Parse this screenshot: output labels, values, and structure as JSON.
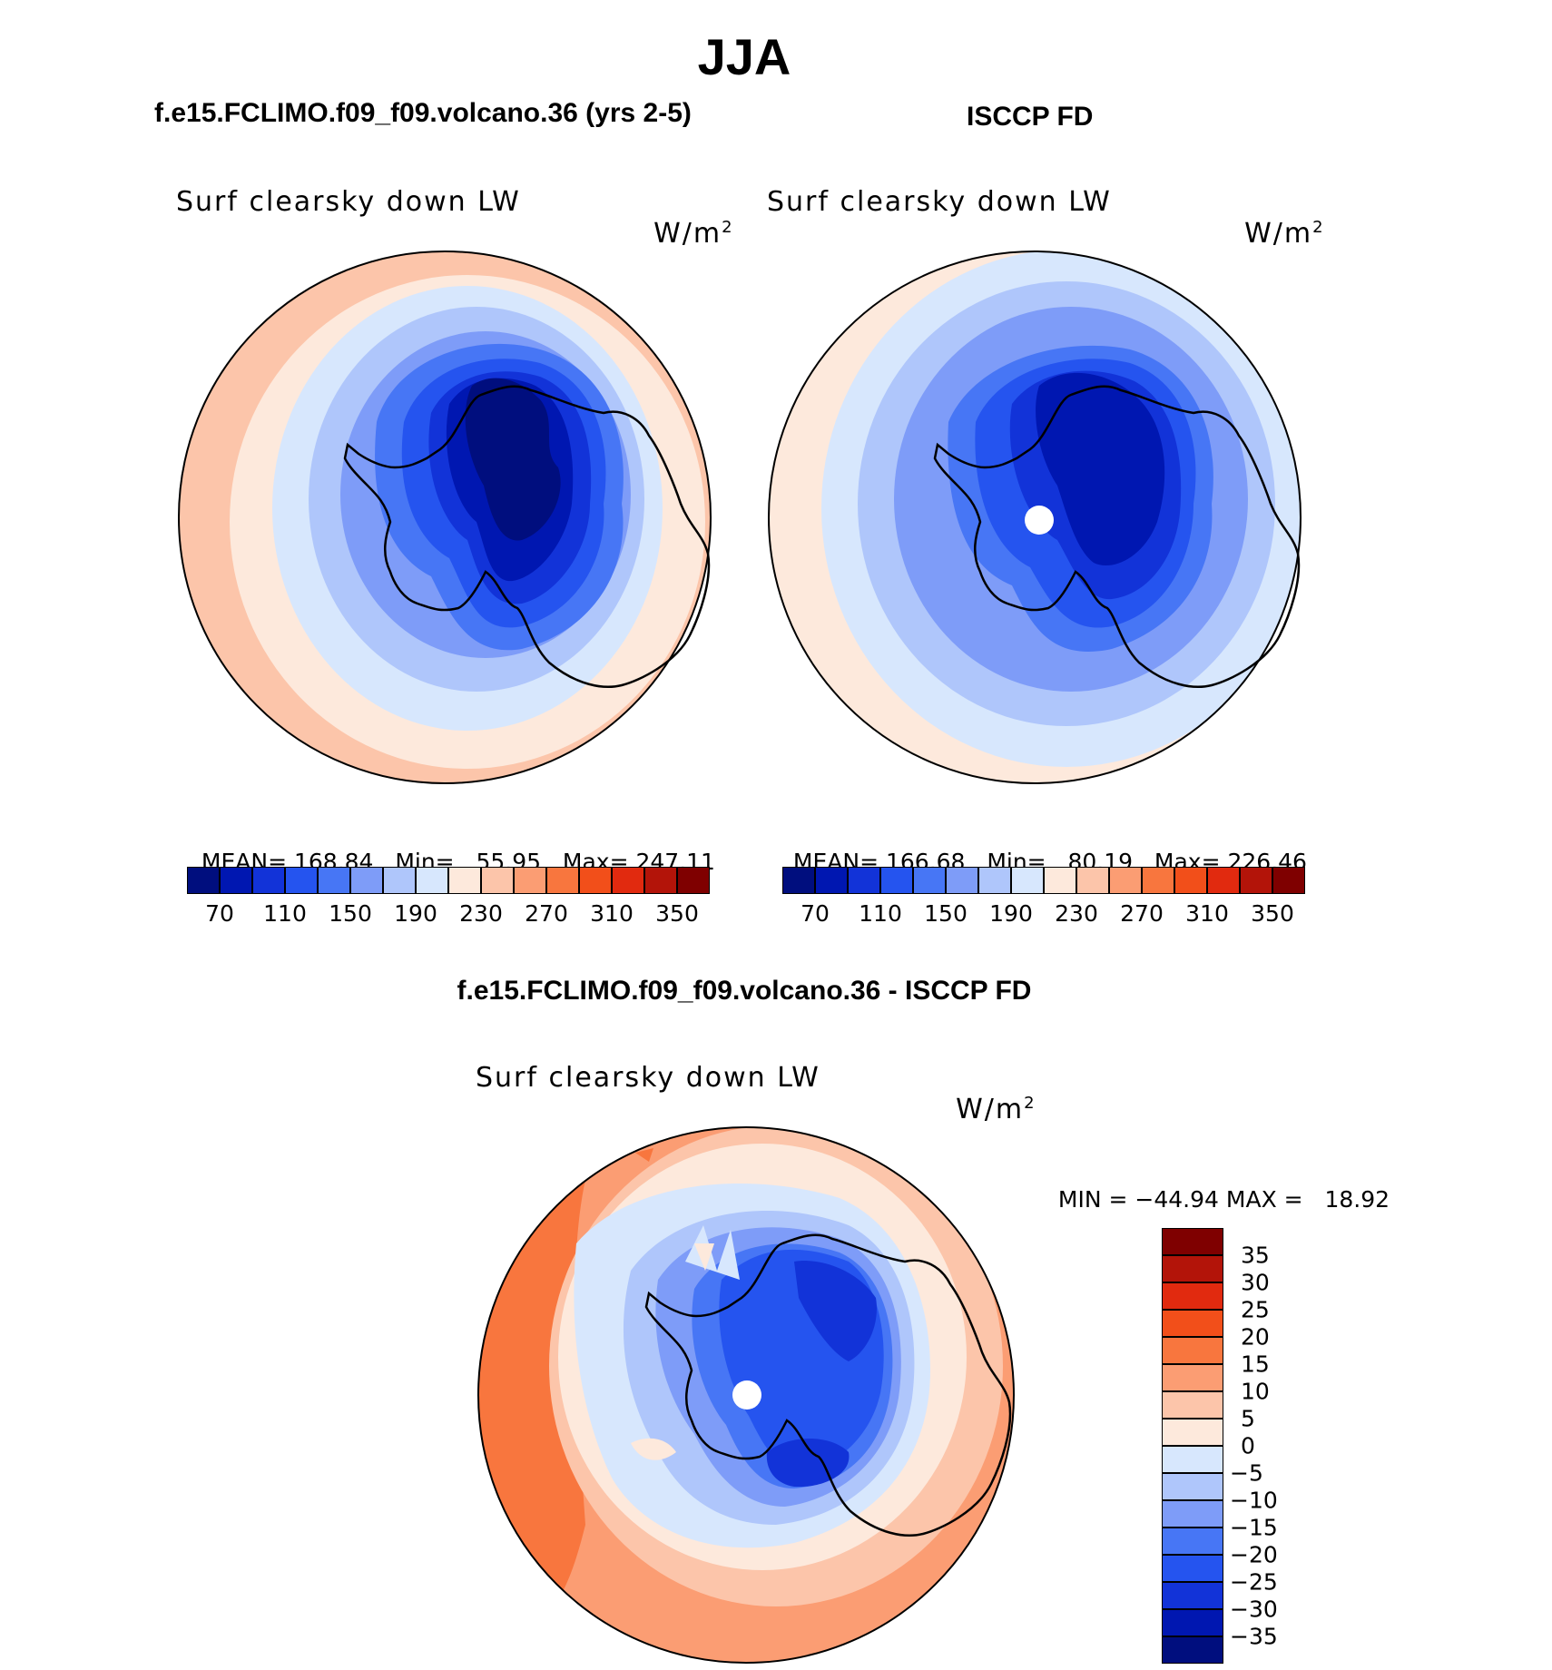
{
  "figure": {
    "title": "JJA",
    "variable_label": "Surf clearsky down LW",
    "units_base": "W/m",
    "units_exp": "2"
  },
  "panels": [
    {
      "title": "f.e15.FCLIMO.f09_f09.volcano.36 (yrs 2-5)",
      "stats": {
        "mean_label": "MEAN=",
        "mean": "168.84",
        "min_label": "Min=",
        "min": "55.95",
        "max_label": "Max=",
        "max": "247.11"
      }
    },
    {
      "title": "ISCCP FD",
      "stats": {
        "mean_label": "MEAN=",
        "mean": "166.68",
        "min_label": "Min=",
        "min": "80.19",
        "max_label": "Max=",
        "max": "226.46"
      }
    },
    {
      "title": "f.e15.FCLIMO.f09_f09.volcano.36 - ISCCP FD",
      "stats": {
        "min_label": "MIN =",
        "min": "−44.94",
        "max_label": "MAX =",
        "max": "18.92"
      }
    }
  ],
  "colorbar_abs": {
    "tick_labels": [
      "70",
      "110",
      "150",
      "190",
      "230",
      "270",
      "310",
      "350"
    ],
    "colors": [
      "#000e7e",
      "#0017b1",
      "#1233d8",
      "#2554ef",
      "#4776f5",
      "#7e9cf8",
      "#afc6fb",
      "#d7e7fd",
      "#fde9dc",
      "#fcc5aa",
      "#fb9d73",
      "#f8763e",
      "#f24f1a",
      "#e12a0f",
      "#b31409",
      "#7f0000"
    ]
  },
  "colorbar_diff": {
    "tick_labels": [
      "35",
      "30",
      "25",
      "20",
      "15",
      "10",
      "5",
      "0",
      "−5",
      "−10",
      "−15",
      "−20",
      "−25",
      "−30",
      "−35"
    ],
    "colors": [
      "#7f0000",
      "#b31409",
      "#e12a0f",
      "#f24f1a",
      "#f8763e",
      "#fb9d73",
      "#fcc5aa",
      "#fde9dc",
      "#d7e7fd",
      "#afc6fb",
      "#7e9cf8",
      "#4776f5",
      "#2554ef",
      "#1233d8",
      "#0017b1",
      "#000e7e"
    ]
  }
}
